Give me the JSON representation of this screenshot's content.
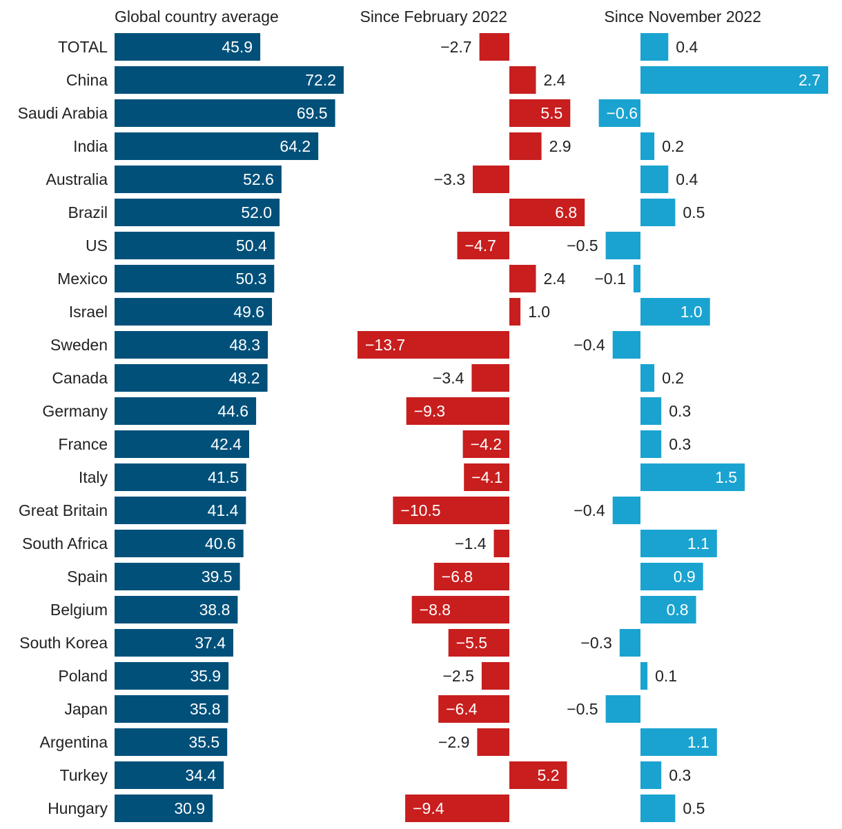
{
  "chart_data": {
    "type": "bar",
    "orientation": "horizontal",
    "panels": [
      {
        "key": "avg",
        "title": "Global country average",
        "color": "#00507a"
      },
      {
        "key": "feb",
        "title": "Since February 2022",
        "color": "#c81e1e"
      },
      {
        "key": "nov",
        "title": "Since November 2022",
        "color": "#1aa3d0"
      }
    ],
    "categories": [
      "TOTAL",
      "China",
      "Saudi Arabia",
      "India",
      "Australia",
      "Brazil",
      "US",
      "Mexico",
      "Israel",
      "Sweden",
      "Canada",
      "Germany",
      "France",
      "Italy",
      "Great Britain",
      "South Africa",
      "Spain",
      "Belgium",
      "South Korea",
      "Poland",
      "Japan",
      "Argentina",
      "Turkey",
      "Hungary"
    ],
    "series": [
      {
        "name": "Global country average",
        "values": [
          45.9,
          72.2,
          69.5,
          64.2,
          52.6,
          52.0,
          50.4,
          50.3,
          49.6,
          48.3,
          48.2,
          44.6,
          42.4,
          41.5,
          41.4,
          40.6,
          39.5,
          38.8,
          37.4,
          35.9,
          35.8,
          35.5,
          34.4,
          30.9
        ]
      },
      {
        "name": "Since February 2022",
        "values": [
          -2.7,
          2.4,
          5.5,
          2.9,
          -3.3,
          6.8,
          -4.7,
          2.4,
          1.0,
          -13.7,
          -3.4,
          -9.3,
          -4.2,
          -4.1,
          -10.5,
          -1.4,
          -6.8,
          -8.8,
          -5.5,
          -2.5,
          -6.4,
          -2.9,
          5.2,
          -9.4
        ]
      },
      {
        "name": "Since November 2022",
        "values": [
          0.4,
          2.7,
          -0.6,
          0.2,
          0.4,
          0.5,
          -0.5,
          -0.1,
          1.0,
          -0.4,
          0.2,
          0.3,
          0.3,
          1.5,
          -0.4,
          1.1,
          0.9,
          0.8,
          -0.3,
          0.1,
          -0.5,
          1.1,
          0.3,
          0.5
        ]
      }
    ],
    "labels": [
      [
        "45.9",
        "72.2",
        "69.5",
        "64.2",
        "52.6",
        "52.0",
        "50.4",
        "50.3",
        "49.6",
        "48.3",
        "48.2",
        "44.6",
        "42.4",
        "41.5",
        "41.4",
        "40.6",
        "39.5",
        "38.8",
        "37.4",
        "35.9",
        "35.8",
        "35.5",
        "34.4",
        "30.9"
      ],
      [
        "−2.7",
        "2.4",
        "5.5",
        "2.9",
        "−3.3",
        "6.8",
        "−4.7",
        "2.4",
        "1.0",
        "−13.7",
        "−3.4",
        "−9.3",
        "−4.2",
        "−4.1",
        "−10.5",
        "−1.4",
        "−6.8",
        "−8.8",
        "−5.5",
        "−2.5",
        "−6.4",
        "−2.9",
        "5.2",
        "−9.4"
      ],
      [
        "0.4",
        "2.7",
        "−0.6",
        "0.2",
        "0.4",
        "0.5",
        "−0.5",
        "−0.1",
        "1.0",
        "−0.4",
        "0.2",
        "0.3",
        "0.3",
        "1.5",
        "−0.4",
        "1.1",
        "0.9",
        "0.8",
        "−0.3",
        "0.1",
        "−0.5",
        "1.1",
        "0.3",
        "0.5"
      ]
    ],
    "text_color": "#222222",
    "inside_label_color": "#ffffff"
  }
}
